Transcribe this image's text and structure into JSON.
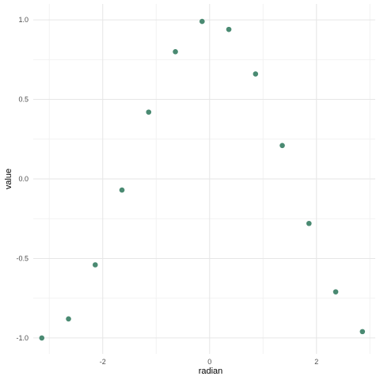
{
  "chart_data": {
    "type": "scatter",
    "xlabel": "radian",
    "ylabel": "value",
    "xlim": [
      -3.3,
      3.1
    ],
    "ylim": [
      -1.1,
      1.1
    ],
    "x_ticks": [
      -2,
      0,
      2
    ],
    "x_tick_labels": [
      "-2",
      "0",
      "2"
    ],
    "y_ticks": [
      -1.0,
      -0.5,
      0.0,
      0.5,
      1.0
    ],
    "y_tick_labels": [
      "-1.0",
      "-0.5",
      "0.0",
      "0.5",
      "1.0"
    ],
    "grid": true,
    "point_color": "#4a8a72",
    "points": [
      {
        "x": -3.14,
        "y": -1.0
      },
      {
        "x": -2.64,
        "y": -0.88
      },
      {
        "x": -2.14,
        "y": -0.54
      },
      {
        "x": -1.64,
        "y": -0.07
      },
      {
        "x": -1.14,
        "y": 0.42
      },
      {
        "x": -0.64,
        "y": 0.8
      },
      {
        "x": -0.14,
        "y": 0.99
      },
      {
        "x": 0.36,
        "y": 0.94
      },
      {
        "x": 0.86,
        "y": 0.66
      },
      {
        "x": 1.36,
        "y": 0.21
      },
      {
        "x": 1.86,
        "y": -0.28
      },
      {
        "x": 2.36,
        "y": -0.71
      },
      {
        "x": 2.86,
        "y": -0.96
      }
    ]
  }
}
